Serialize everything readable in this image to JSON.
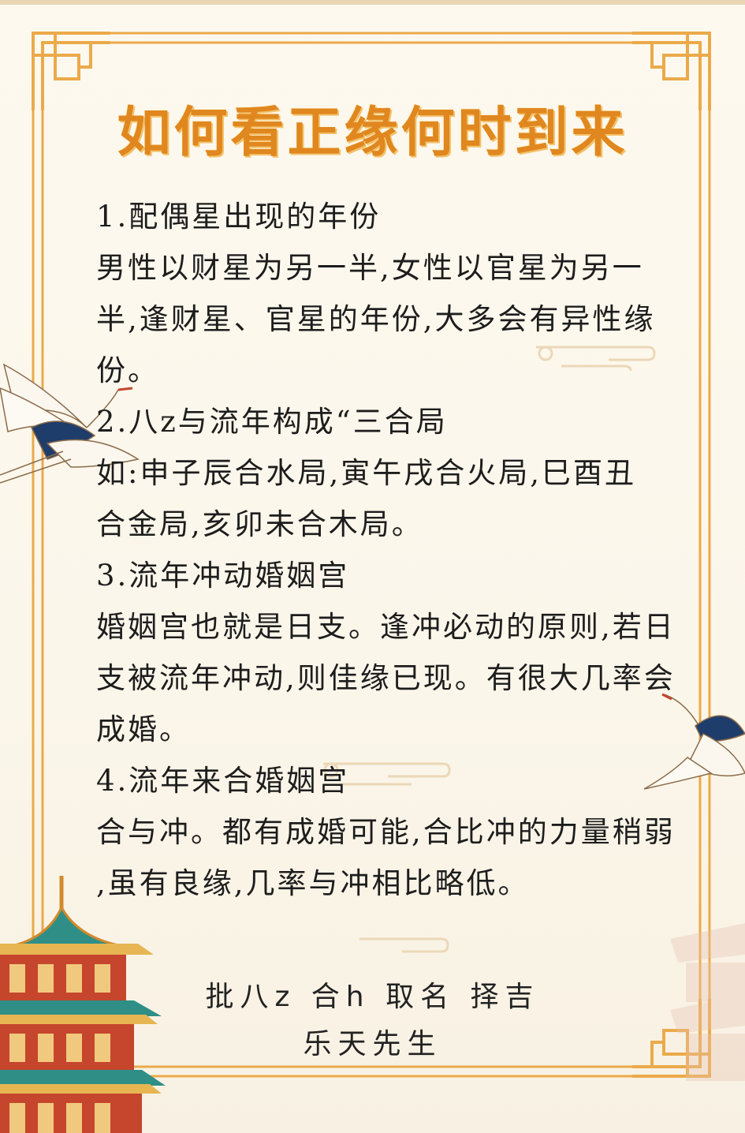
{
  "title": "如何看正缘何时到来",
  "sections": [
    {
      "heading": "1.配偶星出现的年份",
      "lines": [
        "男性以财星为另一半,女性以官星为另一",
        "半,逢财星、官星的年份,大多会有异性缘",
        "份。"
      ]
    },
    {
      "heading": "2.八z与流年构成“三合局",
      "lines": [
        "如:申子辰合水局,寅午戌合火局,巳酉丑",
        "合金局,亥卯未合木局。"
      ]
    },
    {
      "heading": "3.流年冲动婚姻宫",
      "lines": [
        "婚姻宫也就是日支。逢冲必动的原则,若日",
        "支被流年冲动,则佳缘已现。有很大几率会",
        "成婚。"
      ]
    },
    {
      "heading": "4.流年来合婚姻宫",
      "lines": [
        "合与冲。都有成婚可能,合比冲的力量稍弱",
        ",虽有良缘,几率与冲相比略低。"
      ]
    }
  ],
  "signature": {
    "line1": "批八z 合h 取名 择吉",
    "line2": "乐天先生"
  },
  "colors": {
    "title": "#e0871f",
    "frame": "#ebaa4a",
    "body_text": "#1d1d1d",
    "pagoda_roof": "#2f8f86",
    "pagoda_wall": "#c6452d"
  },
  "icons": [
    "crane-icon",
    "pagoda-illustration",
    "cloud-icon",
    "frame-corner-ornament"
  ]
}
